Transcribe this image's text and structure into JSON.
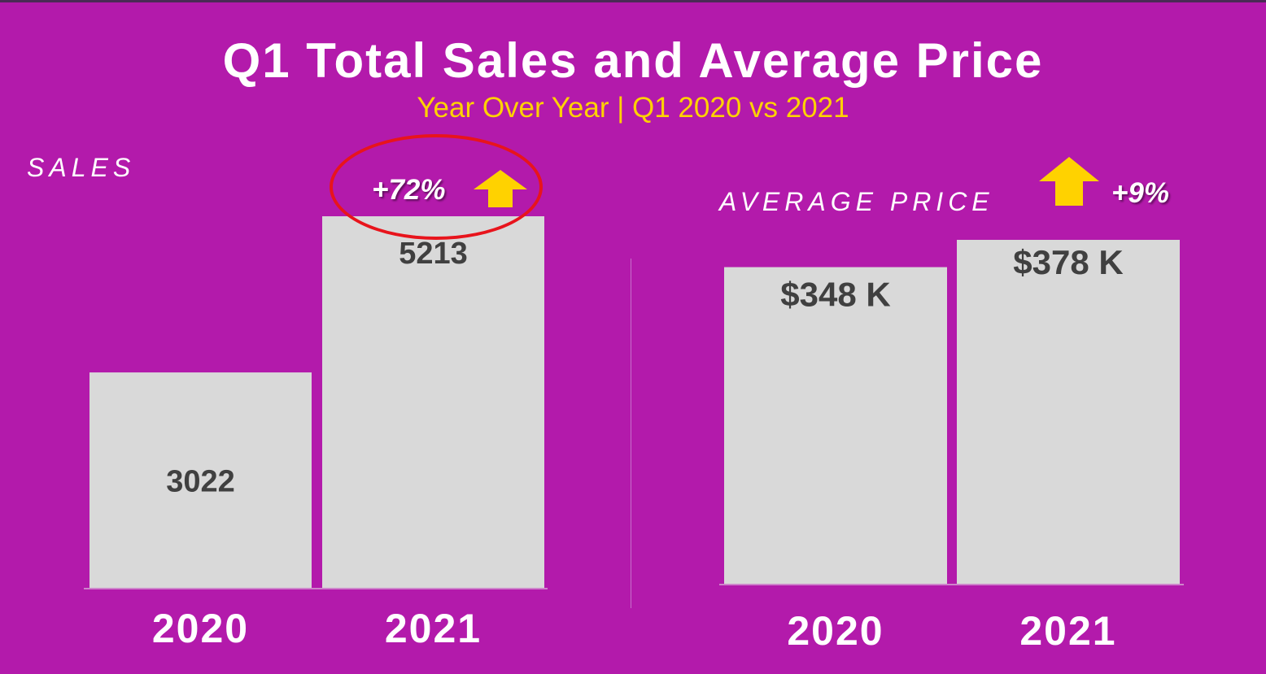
{
  "title": "Q1 Total Sales and Average Price",
  "subtitle": "Year Over Year | Q1 2020 vs 2021",
  "colors": {
    "background": "#b31aab",
    "bar": "#d9d9d9",
    "bar_label": "#404040",
    "subtitle": "#ffd200",
    "arrow": "#ffd200",
    "highlight_circle": "#e8141c"
  },
  "sales_panel": {
    "label": "SALES",
    "change": "+72%",
    "change_icon": "up-arrow-icon"
  },
  "price_panel": {
    "label": "AVERAGE PRICE",
    "change": "+9%",
    "change_icon": "up-arrow-icon"
  },
  "chart_data": [
    {
      "type": "bar",
      "title": "SALES",
      "categories": [
        "2020",
        "2021"
      ],
      "values": [
        3022,
        5213
      ],
      "value_labels": [
        "3022",
        "5213"
      ],
      "ylim": [
        0,
        5213
      ],
      "grid": false,
      "annotation": "+72%"
    },
    {
      "type": "bar",
      "title": "AVERAGE PRICE",
      "categories": [
        "2020",
        "2021"
      ],
      "values": [
        348,
        378
      ],
      "value_labels": [
        "$348 K",
        "$378 K"
      ],
      "ylim": [
        0,
        378
      ],
      "grid": false,
      "annotation": "+9%"
    }
  ]
}
